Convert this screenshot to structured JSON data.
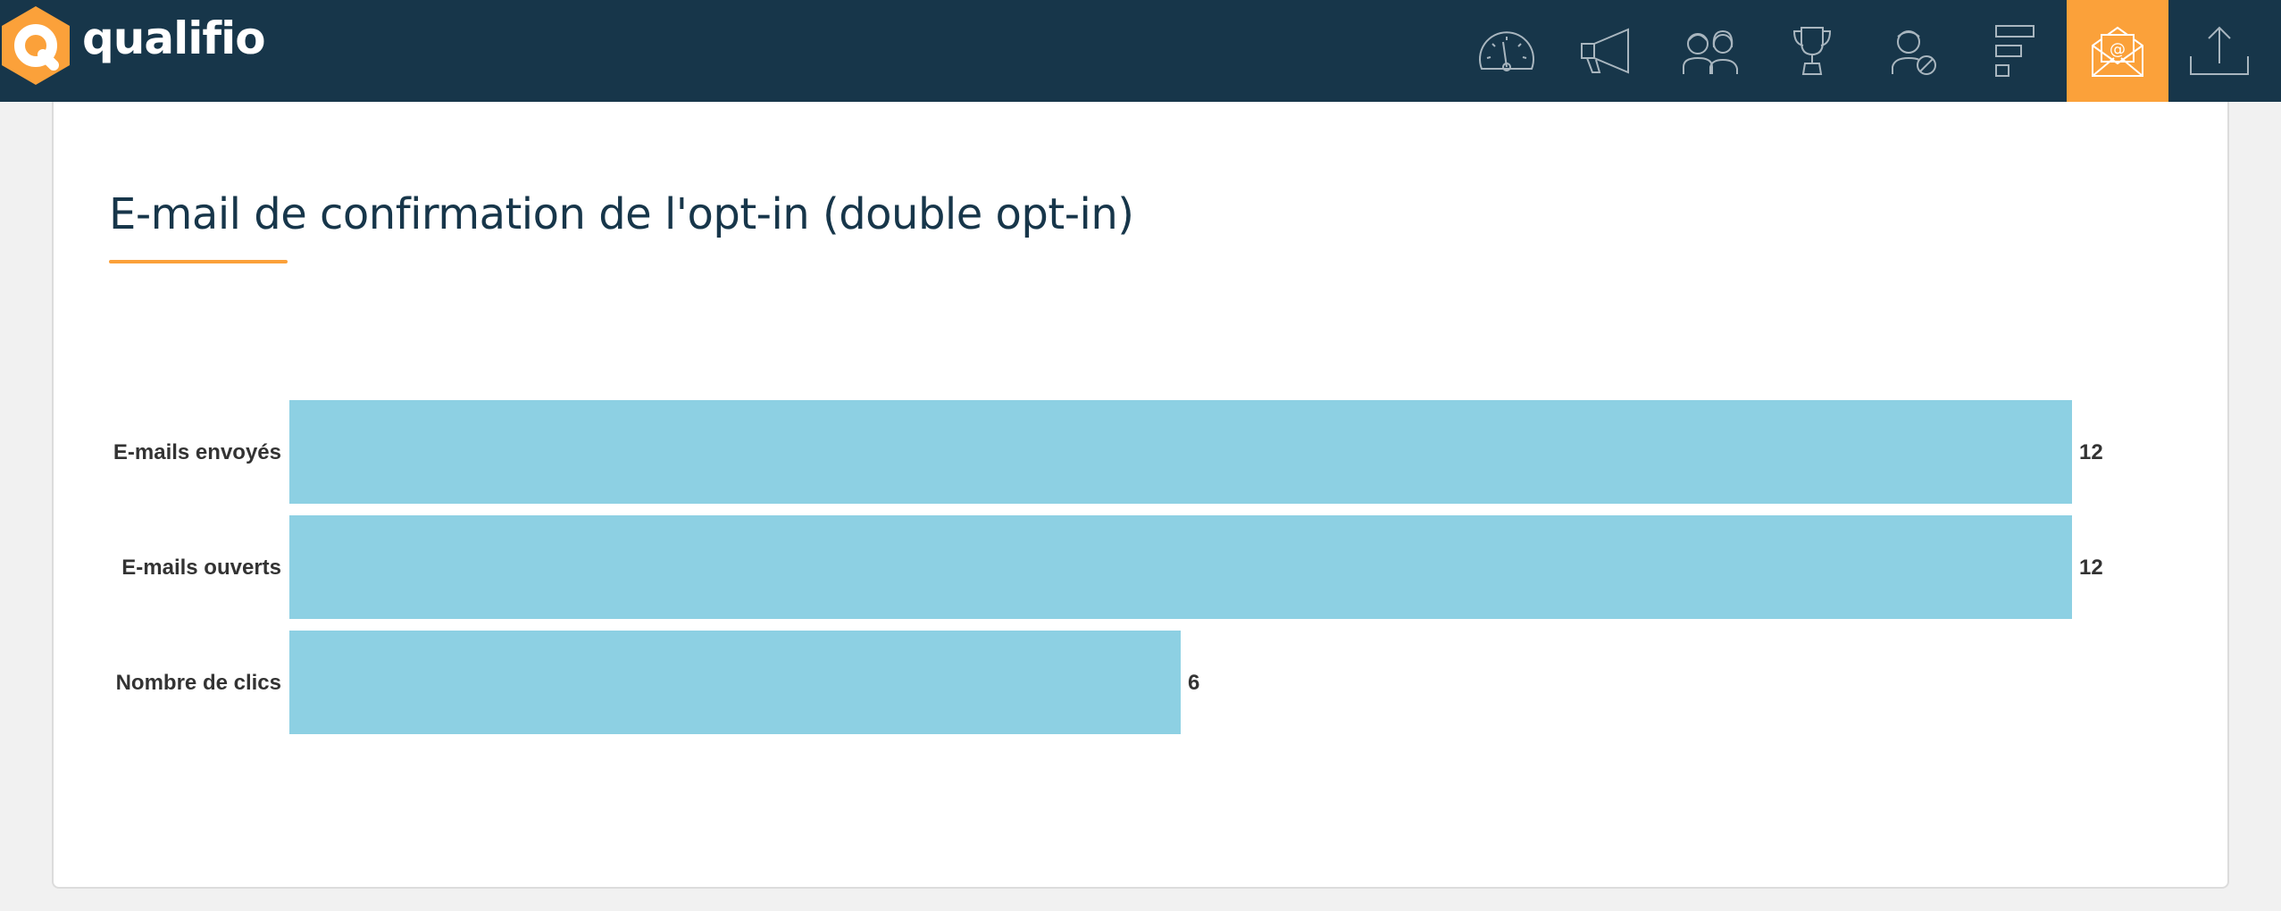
{
  "brand": {
    "name": "qualifio",
    "accent_color": "#fba13a",
    "header_color": "#17364a"
  },
  "nav": {
    "items": [
      {
        "icon": "speedometer-icon",
        "active": false
      },
      {
        "icon": "megaphone-icon",
        "active": false
      },
      {
        "icon": "participants-icon",
        "active": false
      },
      {
        "icon": "trophy-icon",
        "active": false
      },
      {
        "icon": "user-block-icon",
        "active": false
      },
      {
        "icon": "bars-icon",
        "active": false
      },
      {
        "icon": "email-icon",
        "active": true
      },
      {
        "icon": "export-icon",
        "active": false
      }
    ]
  },
  "card": {
    "title": "E-mail de confirmation de l'opt-in (double opt-in)"
  },
  "chart_data": {
    "type": "bar",
    "orientation": "horizontal",
    "categories": [
      "E-mails envoyés",
      "E-mails ouverts",
      "Nombre de clics"
    ],
    "values": [
      12,
      12,
      6
    ],
    "xlim": [
      0,
      12
    ],
    "bar_color": "#8dd0e3",
    "grid": false,
    "title": "",
    "xlabel": "",
    "ylabel": ""
  }
}
